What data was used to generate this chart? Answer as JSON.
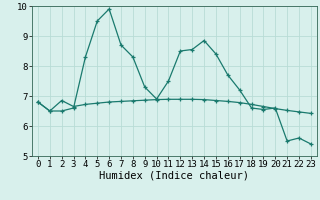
{
  "title": "",
  "xlabel": "Humidex (Indice chaleur)",
  "x": [
    0,
    1,
    2,
    3,
    4,
    5,
    6,
    7,
    8,
    9,
    10,
    11,
    12,
    13,
    14,
    15,
    16,
    17,
    18,
    19,
    20,
    21,
    22,
    23
  ],
  "line1": [
    6.8,
    6.5,
    6.5,
    6.6,
    8.3,
    9.5,
    9.9,
    8.7,
    8.3,
    7.3,
    6.9,
    7.5,
    8.5,
    8.55,
    8.85,
    8.4,
    7.7,
    7.2,
    6.6,
    6.55,
    6.6,
    5.5,
    5.6,
    5.4
  ],
  "line2": [
    6.8,
    6.5,
    6.85,
    6.65,
    6.72,
    6.76,
    6.8,
    6.82,
    6.84,
    6.86,
    6.88,
    6.89,
    6.89,
    6.89,
    6.88,
    6.85,
    6.82,
    6.78,
    6.72,
    6.65,
    6.58,
    6.52,
    6.47,
    6.42
  ],
  "line_color": "#1a7a6e",
  "bg_color": "#d8f0ec",
  "grid_color": "#b8dcd6",
  "ylim": [
    5,
    10
  ],
  "xlim": [
    -0.5,
    23.5
  ],
  "yticks": [
    5,
    6,
    7,
    8,
    9,
    10
  ],
  "xticks": [
    0,
    1,
    2,
    3,
    4,
    5,
    6,
    7,
    8,
    9,
    10,
    11,
    12,
    13,
    14,
    15,
    16,
    17,
    18,
    19,
    20,
    21,
    22,
    23
  ],
  "tick_fontsize": 6.5,
  "xlabel_fontsize": 7.5,
  "marker_size": 3.5,
  "line_width": 0.9
}
